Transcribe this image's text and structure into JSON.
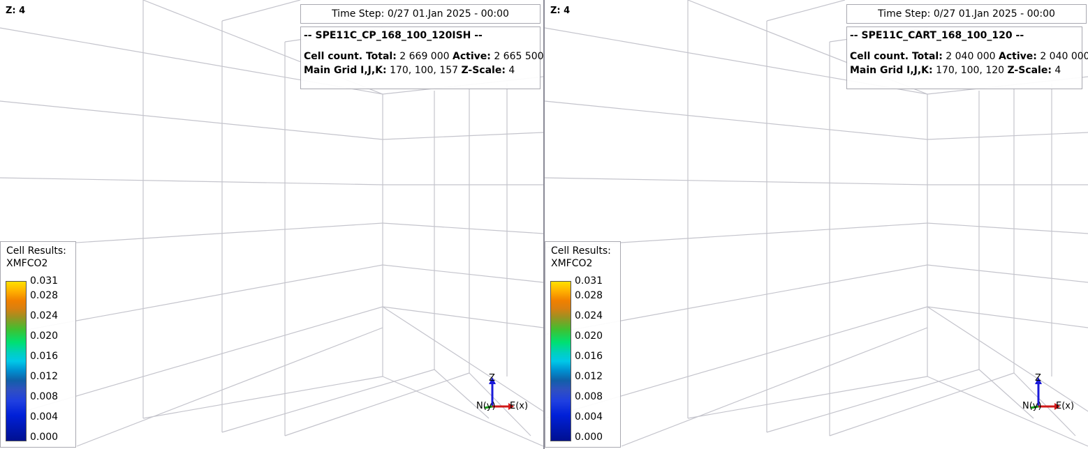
{
  "views": [
    {
      "z_label": "Z: 4",
      "time_step": "Time Step: 0/27 01.Jan 2025 - 00:00",
      "case_title": "-- SPE11C_CP_168_100_120ISH --",
      "cell_count_label": "Cell count. Total:",
      "cell_total": "2 669 000",
      "active_label": "Active:",
      "cell_active": "2 665 500",
      "grid_label": "Main Grid I,J,K:",
      "grid_ijk": "170, 100, 157",
      "zscale_label": "Z-Scale:",
      "zscale": "4",
      "legend": {
        "title1": "Cell Results:",
        "title2": "XMFCO2",
        "values": [
          "0.031",
          "0.028",
          "0.024",
          "0.020",
          "0.016",
          "0.012",
          "0.008",
          "0.004",
          "0.000"
        ]
      },
      "axes": {
        "z": "Z",
        "n": "N(y)",
        "e": "E(x)"
      }
    },
    {
      "z_label": "Z: 4",
      "time_step": "Time Step: 0/27 01.Jan 2025 - 00:00",
      "case_title": "-- SPE11C_CART_168_100_120 --",
      "cell_count_label": "Cell count. Total:",
      "cell_total": "2 040 000",
      "active_label": "Active:",
      "cell_active": "2 040 000",
      "grid_label": "Main Grid I,J,K:",
      "grid_ijk": "170, 100, 120",
      "zscale_label": "Z-Scale:",
      "zscale": "4",
      "legend": {
        "title1": "Cell Results:",
        "title2": "XMFCO2",
        "values": [
          "0.031",
          "0.028",
          "0.024",
          "0.020",
          "0.016",
          "0.012",
          "0.008",
          "0.004",
          "0.000"
        ]
      },
      "axes": {
        "z": "Z",
        "n": "N(y)",
        "e": "E(x)"
      }
    }
  ],
  "colors": {
    "grid_line": "#c4c4cc",
    "axis_z": "#1a1ad8",
    "axis_e": "#d01818",
    "axis_n": "#18a018"
  }
}
